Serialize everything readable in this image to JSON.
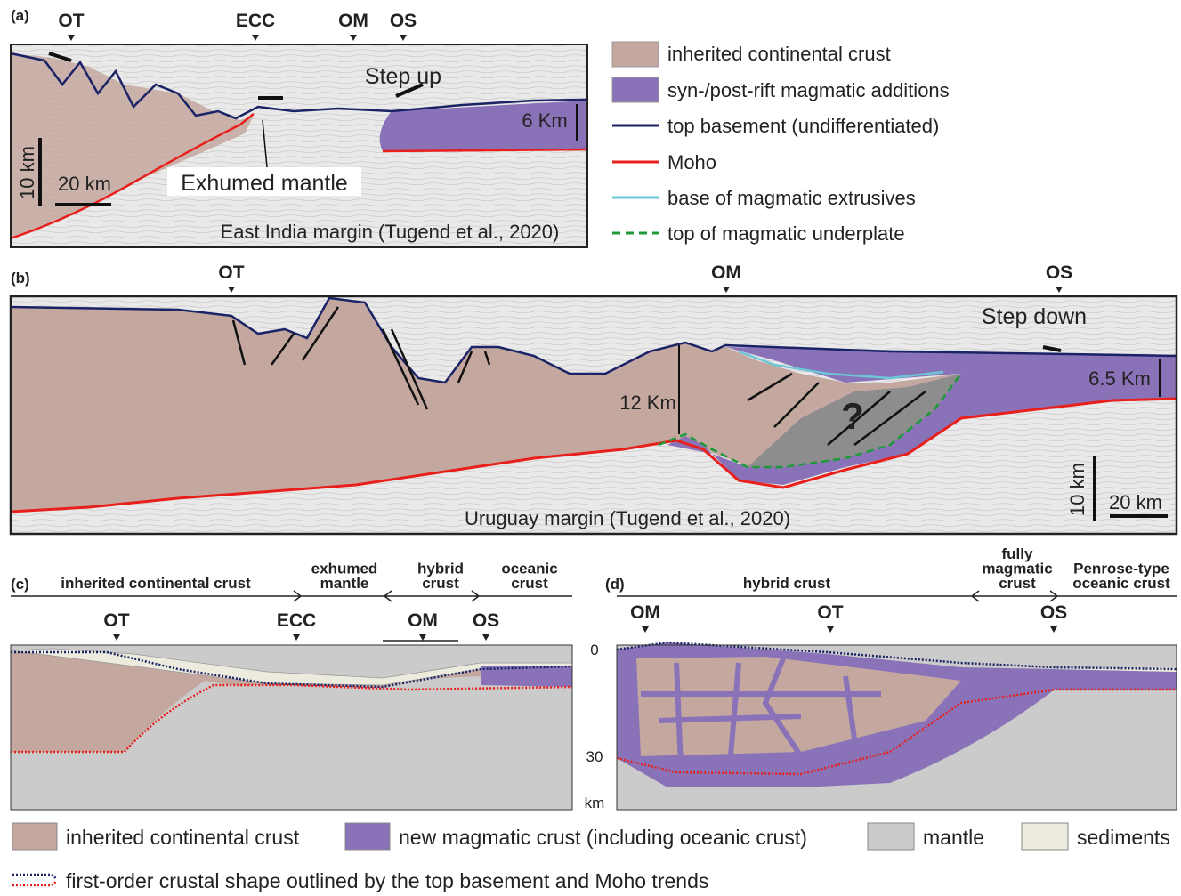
{
  "panel_a": {
    "label": "(a)",
    "markers": [
      "OT",
      "ECC",
      "OM",
      "OS"
    ],
    "annotations": {
      "step": "Step up",
      "thickness": "6 Km",
      "exhumed": "Exhumed mantle"
    },
    "scale": {
      "vertical": "10 km",
      "horizontal": "20 km"
    },
    "caption": "East India margin (Tugend et al., 2020)"
  },
  "legend_top": [
    "inherited continental crust",
    "syn-/post-rift magmatic additions",
    "top basement (undifferentiated)",
    "Moho",
    "base of magmatic extrusives",
    "top of magmatic underplate"
  ],
  "panel_b": {
    "label": "(b)",
    "markers": [
      "OT",
      "OM",
      "OS"
    ],
    "annotations": {
      "step": "Step down",
      "thickness": "6.5 Km",
      "crust": "12 Km",
      "question": "?"
    },
    "scale": {
      "vertical": "10 km",
      "horizontal": "20 km"
    },
    "caption": "Uruguay margin (Tugend et al., 2020)"
  },
  "panel_c": {
    "label": "(c)",
    "domains": [
      [
        "inherited continental crust"
      ],
      [
        "exhumed",
        "mantle"
      ],
      [
        "hybrid",
        "crust"
      ],
      [
        "oceanic",
        "crust"
      ]
    ],
    "markers": [
      "OT",
      "ECC",
      "OM",
      "OS"
    ]
  },
  "panel_d": {
    "label": "(d)",
    "domains": [
      [
        "hybrid crust"
      ],
      [
        "fully",
        "magmatic",
        "crust"
      ],
      [
        "Penrose-type",
        "oceanic crust"
      ]
    ],
    "markers": [
      "OM",
      "OT",
      "OS"
    ],
    "depth_labels": [
      "0",
      "30",
      "km"
    ]
  },
  "legend_bottom": {
    "items": [
      "inherited continental crust",
      "new magmatic crust (including oceanic crust)",
      "mantle",
      "sediments"
    ],
    "outline": "first-order crustal shape outlined by the top basement and Moho trends"
  }
}
